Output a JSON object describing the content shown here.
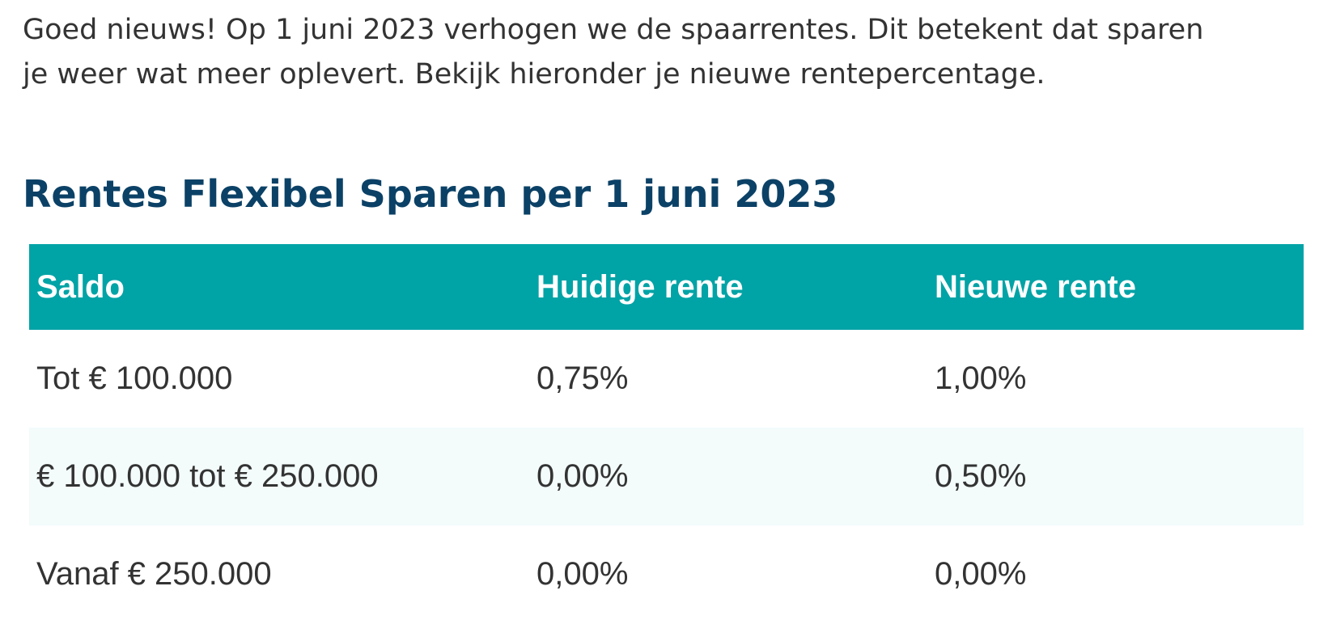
{
  "intro": {
    "line1": "Goed nieuws! Op 1 juni 2023 verhogen we de spaarrentes. Dit betekent dat sparen",
    "line2": "je weer wat meer oplevert. Bekijk hieronder je nieuwe rentepercentage."
  },
  "heading": "Rentes Flexibel Sparen per 1 juni 2023",
  "table": {
    "headers": [
      "Saldo",
      "Huidige rente",
      "Nieuwe rente"
    ],
    "rows": [
      [
        "Tot € 100.000",
        "0,75%",
        "1,00%"
      ],
      [
        "€ 100.000 tot € 250.000",
        "0,00%",
        "0,50%"
      ],
      [
        "Vanaf € 250.000",
        "0,00%",
        "0,00%"
      ]
    ]
  },
  "colors": {
    "heading": "#0b4166",
    "table_header_bg": "#00a3a6",
    "alt_row_bg": "#f3fbfb",
    "text": "#333333"
  }
}
